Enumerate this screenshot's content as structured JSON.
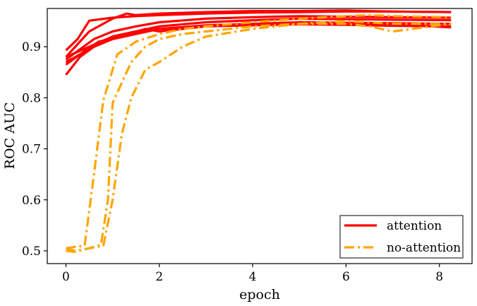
{
  "chart_data": {
    "type": "line",
    "xlabel": "epoch",
    "ylabel": "ROC AUC",
    "xlim": [
      -0.4,
      8.7
    ],
    "ylim": [
      0.475,
      0.975
    ],
    "xticks": [
      0,
      2,
      4,
      6,
      8
    ],
    "yticks": [
      0.5,
      0.6,
      0.7,
      0.8,
      0.9
    ],
    "xtick_labels": [
      "0",
      "2",
      "4",
      "6",
      "8"
    ],
    "ytick_labels": [
      "0.5",
      "0.6",
      "0.7",
      "0.8",
      "0.9"
    ],
    "grid": false,
    "legend_position": "bottom-right",
    "groups": [
      {
        "label": "attention",
        "color": "#ff0000",
        "style": "solid"
      },
      {
        "label": "no-attention",
        "color": "#ffa500",
        "style": "dashdot"
      }
    ],
    "series": [
      {
        "group": 0,
        "x": [
          0,
          0.25,
          0.5,
          1,
          1.5,
          2,
          3,
          4,
          5,
          6,
          7,
          8.25
        ],
        "y": [
          0.893,
          0.915,
          0.951,
          0.957,
          0.96,
          0.962,
          0.965,
          0.967,
          0.968,
          0.969,
          0.969,
          0.968
        ]
      },
      {
        "group": 0,
        "x": [
          0,
          0.25,
          0.5,
          1,
          1.3,
          1.5,
          2,
          3,
          4,
          5,
          6,
          7,
          8.25
        ],
        "y": [
          0.88,
          0.905,
          0.93,
          0.955,
          0.965,
          0.962,
          0.965,
          0.968,
          0.97,
          0.97,
          0.971,
          0.969,
          0.968
        ]
      },
      {
        "group": 0,
        "x": [
          0,
          0.3,
          0.6,
          1,
          1.5,
          2,
          3,
          4,
          5,
          6,
          7,
          8.25
        ],
        "y": [
          0.875,
          0.895,
          0.915,
          0.93,
          0.94,
          0.948,
          0.955,
          0.958,
          0.96,
          0.959,
          0.958,
          0.957
        ]
      },
      {
        "group": 0,
        "x": [
          0,
          0.3,
          0.7,
          1,
          1.5,
          2,
          3,
          4,
          5,
          6,
          7,
          8.25
        ],
        "y": [
          0.87,
          0.885,
          0.905,
          0.92,
          0.93,
          0.94,
          0.948,
          0.952,
          0.955,
          0.954,
          0.953,
          0.952
        ]
      },
      {
        "group": 0,
        "x": [
          0,
          0.3,
          0.7,
          1.2,
          1.7,
          2,
          3,
          4,
          5,
          6,
          7,
          8.25
        ],
        "y": [
          0.865,
          0.885,
          0.91,
          0.92,
          0.935,
          0.93,
          0.94,
          0.945,
          0.948,
          0.947,
          0.946,
          0.945
        ]
      },
      {
        "group": 0,
        "x": [
          0,
          0.3,
          0.6,
          1,
          1.5,
          2,
          3,
          4,
          5,
          6,
          7,
          8.25
        ],
        "y": [
          0.845,
          0.88,
          0.9,
          0.915,
          0.925,
          0.935,
          0.942,
          0.945,
          0.944,
          0.943,
          0.941,
          0.94
        ]
      },
      {
        "group": 0,
        "x": [
          0,
          0.5,
          1,
          1.5,
          2,
          3,
          4,
          5,
          6,
          7,
          8.25
        ],
        "y": [
          0.88,
          0.9,
          0.92,
          0.93,
          0.935,
          0.94,
          0.942,
          0.944,
          0.945,
          0.944,
          0.938
        ]
      },
      {
        "group": 1,
        "x": [
          0,
          0.2,
          0.4,
          0.6,
          0.8,
          1.1,
          1.5,
          2,
          2.5,
          3,
          4,
          5,
          6,
          6.5,
          7,
          8.25
        ],
        "y": [
          0.505,
          0.508,
          0.51,
          0.65,
          0.795,
          0.885,
          0.91,
          0.925,
          0.935,
          0.94,
          0.948,
          0.955,
          0.96,
          0.962,
          0.96,
          0.958
        ]
      },
      {
        "group": 1,
        "x": [
          0,
          0.2,
          0.5,
          0.75,
          0.9,
          1.0,
          1.2,
          1.4,
          1.7,
          2,
          2.5,
          3,
          4,
          5,
          6,
          6.5,
          7,
          8.25
        ],
        "y": [
          0.5,
          0.498,
          0.505,
          0.512,
          0.6,
          0.79,
          0.83,
          0.87,
          0.9,
          0.915,
          0.925,
          0.93,
          0.94,
          0.945,
          0.945,
          0.94,
          0.93,
          0.945
        ]
      },
      {
        "group": 1,
        "x": [
          0,
          0.2,
          0.5,
          0.8,
          1.0,
          1.2,
          1.4,
          1.7,
          2,
          2.5,
          3,
          4,
          5,
          6,
          7,
          8.25
        ],
        "y": [
          0.505,
          0.5,
          0.505,
          0.51,
          0.6,
          0.73,
          0.8,
          0.855,
          0.87,
          0.9,
          0.92,
          0.935,
          0.945,
          0.95,
          0.945,
          0.945
        ]
      }
    ]
  }
}
